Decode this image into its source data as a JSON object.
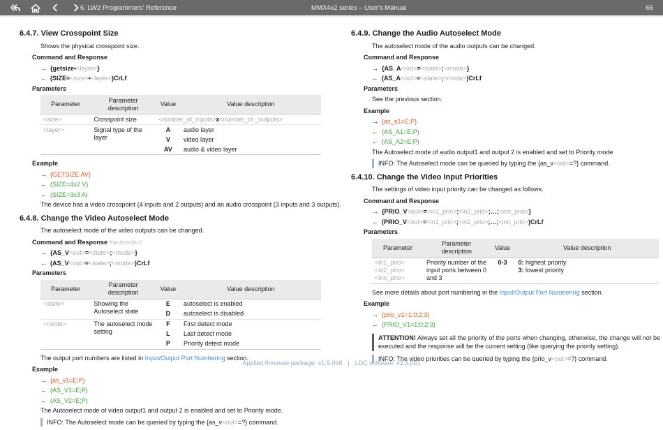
{
  "topbar": {
    "section_title": "6. LW2 Programmers' Reference",
    "doc_title": "MMX4x2 series – User's Manual",
    "page": "65"
  },
  "arrows": {
    "send": "→",
    "recv": "←"
  },
  "labels": {
    "command": "Command and Response",
    "parameters": "Parameters",
    "example": "Example"
  },
  "table_headers": [
    "Parameter",
    "Parameter description",
    "Value",
    "Value description"
  ],
  "s647": {
    "number": "6.4.7.",
    "title": "View Crosspoint Size",
    "intro": "Shows the physical crosspoint size.",
    "command": [
      {
        "t": "{getsize",
        "c": "k"
      },
      {
        "t": "•",
        "c": "k"
      },
      {
        "t": "<layer>",
        "c": "v"
      },
      {
        "t": "}",
        "c": "k"
      }
    ],
    "response": [
      {
        "t": "(SIZE=",
        "c": "k"
      },
      {
        "t": "<size>",
        "c": "v"
      },
      {
        "t": "•",
        "c": "k"
      },
      {
        "t": "<layer>",
        "c": "v"
      },
      {
        "t": ")CrLf",
        "c": "k"
      }
    ],
    "table": {
      "size_param": "<size>",
      "size_desc": "Crosspoint size",
      "size_value": [
        {
          "t": "<number_of_inputs>",
          "c": "v"
        },
        {
          "t": "x",
          "c": "k"
        },
        {
          "t": "<number_of _outputs>",
          "c": "v"
        }
      ],
      "layer_param": "<layer>",
      "layer_desc": "Signal type of the layer",
      "rows": [
        {
          "value": "A",
          "desc": "audio layer"
        },
        {
          "value": "V",
          "desc": "video layer"
        },
        {
          "value": "AV",
          "desc": "audio & video layer"
        }
      ]
    },
    "example": [
      {
        "dir": "send",
        "text": "{GETSIZE AV}"
      },
      {
        "dir": "recv",
        "text": "(SIZE=4x2 V)"
      },
      {
        "dir": "recv",
        "text": "(SIZE=3x3 A)"
      }
    ],
    "note": "The device has a video crosspoint (4 inputs and 2 outputs) and an audio crosspoint (3 inputs and 3 outputs)."
  },
  "s648": {
    "number": "6.4.8.",
    "title": "Change the Video Autoselect Mode",
    "intro": "The autoselect mode of the video outputs can be changed.",
    "tag": "#autoselect",
    "command": [
      {
        "t": "{AS_V",
        "c": "k"
      },
      {
        "t": "<out>",
        "c": "v"
      },
      {
        "t": "=",
        "c": "k"
      },
      {
        "t": "<state>",
        "c": "v"
      },
      {
        "t": ";",
        "c": "k"
      },
      {
        "t": "<mode>",
        "c": "v"
      },
      {
        "t": "}",
        "c": "k"
      }
    ],
    "response": [
      {
        "t": "(AS_V",
        "c": "k"
      },
      {
        "t": "<out>",
        "c": "v"
      },
      {
        "t": "=",
        "c": "k"
      },
      {
        "t": "<state>",
        "c": "v"
      },
      {
        "t": ";",
        "c": "k"
      },
      {
        "t": "<mode>",
        "c": "v"
      },
      {
        "t": ")CrLf",
        "c": "k"
      }
    ],
    "table": {
      "state_param": "<state>",
      "state_desc": "Showing the Autoselect state",
      "state_rows": [
        {
          "value": "E",
          "desc": "autoselect is enabled"
        },
        {
          "value": "D",
          "desc": "autoselect is disabled"
        }
      ],
      "mode_param": "<mode>",
      "mode_desc": "The autoselect mode setting",
      "mode_rows": [
        {
          "value": "F",
          "desc": "First detect mode"
        },
        {
          "value": "L",
          "desc": "Last detect mode"
        },
        {
          "value": "P",
          "desc": "Priority detect mode"
        }
      ]
    },
    "port_note": [
      {
        "t": "The output port numbers are listed in ",
        "c": "n"
      },
      {
        "t": "Input/Output Port Numbering",
        "c": "link"
      },
      {
        "t": " section.",
        "c": "n"
      }
    ],
    "example": [
      {
        "dir": "send",
        "text": "{as_v1=E;P}"
      },
      {
        "dir": "recv",
        "text": "(AS_V1=E;P)"
      },
      {
        "dir": "recv",
        "text": "(AS_V2=E;P)"
      }
    ],
    "note": "The Autoselect mode of video output1 and output 2 is enabled and set to Priority mode.",
    "info": [
      {
        "t": "INFO: The Autoselect mode can be queried by typing the {as_v",
        "c": "n"
      },
      {
        "t": "<out>",
        "c": "v"
      },
      {
        "t": "=?} command.",
        "c": "n"
      }
    ]
  },
  "s649": {
    "number": "6.4.9.",
    "title": "Change the Audio Autoselect Mode",
    "intro": "The autoselect mode of the audio outputs can be changed.",
    "command": [
      {
        "t": "{AS_A",
        "c": "k"
      },
      {
        "t": "<out>",
        "c": "v"
      },
      {
        "t": "=",
        "c": "k"
      },
      {
        "t": "<state>",
        "c": "v"
      },
      {
        "t": ";",
        "c": "k"
      },
      {
        "t": "<mode>",
        "c": "v"
      },
      {
        "t": "}",
        "c": "k"
      }
    ],
    "response": [
      {
        "t": "(AS_A",
        "c": "k"
      },
      {
        "t": "<out>",
        "c": "v"
      },
      {
        "t": "=",
        "c": "k"
      },
      {
        "t": "<state>",
        "c": "v"
      },
      {
        "t": ";",
        "c": "k"
      },
      {
        "t": "<mode>",
        "c": "v"
      },
      {
        "t": ")CrLf",
        "c": "k"
      }
    ],
    "params_note": "See the previous section.",
    "example": [
      {
        "dir": "send",
        "text": "{as_a1=E;P}"
      },
      {
        "dir": "recv",
        "text": "(AS_A1=E;P)"
      },
      {
        "dir": "recv",
        "text": "(AS_A2=E;P)"
      }
    ],
    "note": "The Autoselect mode of audio output1 and output 2 is enabled and set to Priority mode.",
    "info": [
      {
        "t": "INFO: The Autoselect mode can be queried by typing the {as_v",
        "c": "n"
      },
      {
        "t": "<out>",
        "c": "v"
      },
      {
        "t": "=?} command.",
        "c": "n"
      }
    ]
  },
  "s6410": {
    "number": "6.4.10.",
    "title": "Change the Video Input Priorities",
    "intro": "The settings of video input priority can be changed as follows.",
    "command": [
      {
        "t": "{PRIO_V",
        "c": "k"
      },
      {
        "t": "<out>",
        "c": "v"
      },
      {
        "t": "=",
        "c": "k"
      },
      {
        "t": "<in1_prio>",
        "c": "v"
      },
      {
        "t": ";",
        "c": "k"
      },
      {
        "t": "<in2_prio>",
        "c": "v"
      },
      {
        "t": ";…;",
        "c": "k"
      },
      {
        "t": "<inn_prio>",
        "c": "v"
      },
      {
        "t": "}",
        "c": "k"
      }
    ],
    "response": [
      {
        "t": "(PRIO_V",
        "c": "k"
      },
      {
        "t": "<out>",
        "c": "v"
      },
      {
        "t": "=",
        "c": "k"
      },
      {
        "t": "<in1_prio>",
        "c": "v"
      },
      {
        "t": ";",
        "c": "k"
      },
      {
        "t": "<in2_prio>",
        "c": "v"
      },
      {
        "t": ";…;",
        "c": "k"
      },
      {
        "t": "<inn_prio>",
        "c": "v"
      },
      {
        "t": ")CrLf",
        "c": "k"
      }
    ],
    "table": {
      "params": [
        "<in1_prio>",
        "<in2_prio>",
        "<inn_prio>"
      ],
      "desc": "Priority number of the input ports between 0 and 3",
      "value": "0-3",
      "vdesc1": [
        {
          "t": "0:",
          "c": "k"
        },
        {
          "t": " highest priority",
          "c": "n"
        }
      ],
      "vdesc2": [
        {
          "t": "3:",
          "c": "k"
        },
        {
          "t": " lowest priority",
          "c": "n"
        }
      ]
    },
    "port_note": [
      {
        "t": "See more details about port numbering in the ",
        "c": "n"
      },
      {
        "t": "Input/Output Port Numbering",
        "c": "link"
      },
      {
        "t": " section.",
        "c": "n"
      }
    ],
    "example": [
      {
        "dir": "send",
        "text": "{prio_v1=1;0;2;3}"
      },
      {
        "dir": "recv",
        "text": "(PRIO_V1=1;0;2;3)"
      }
    ],
    "attention": [
      {
        "t": "ATTENTION!",
        "c": "bk"
      },
      {
        "t": " Always set all the priority of the ports when changing, otherwise, the change will not be executed and the response will be the current setting (like querying the priority setting).",
        "c": "n"
      }
    ],
    "info": [
      {
        "t": "INFO: The video priorities can be queried by typing the {prio_v",
        "c": "n"
      },
      {
        "t": "<out>",
        "c": "v"
      },
      {
        "t": "=?} command.",
        "c": "n"
      }
    ]
  },
  "footer": {
    "firmware": "Applied firmware package: v1.5.0b8",
    "sep": "|",
    "software": "LDC software: v2.3.0b1"
  },
  "colors": {
    "sent_command": "#dc5a28",
    "received_response": "#3fa23c",
    "link": "#4a8bd4",
    "variable": "#a8a8a8",
    "info_bar": "#9fb3c8",
    "attention_bar": "#4f5a64",
    "topbar_bg": "#6a6a6a",
    "footer_text": "#93a9c8"
  }
}
